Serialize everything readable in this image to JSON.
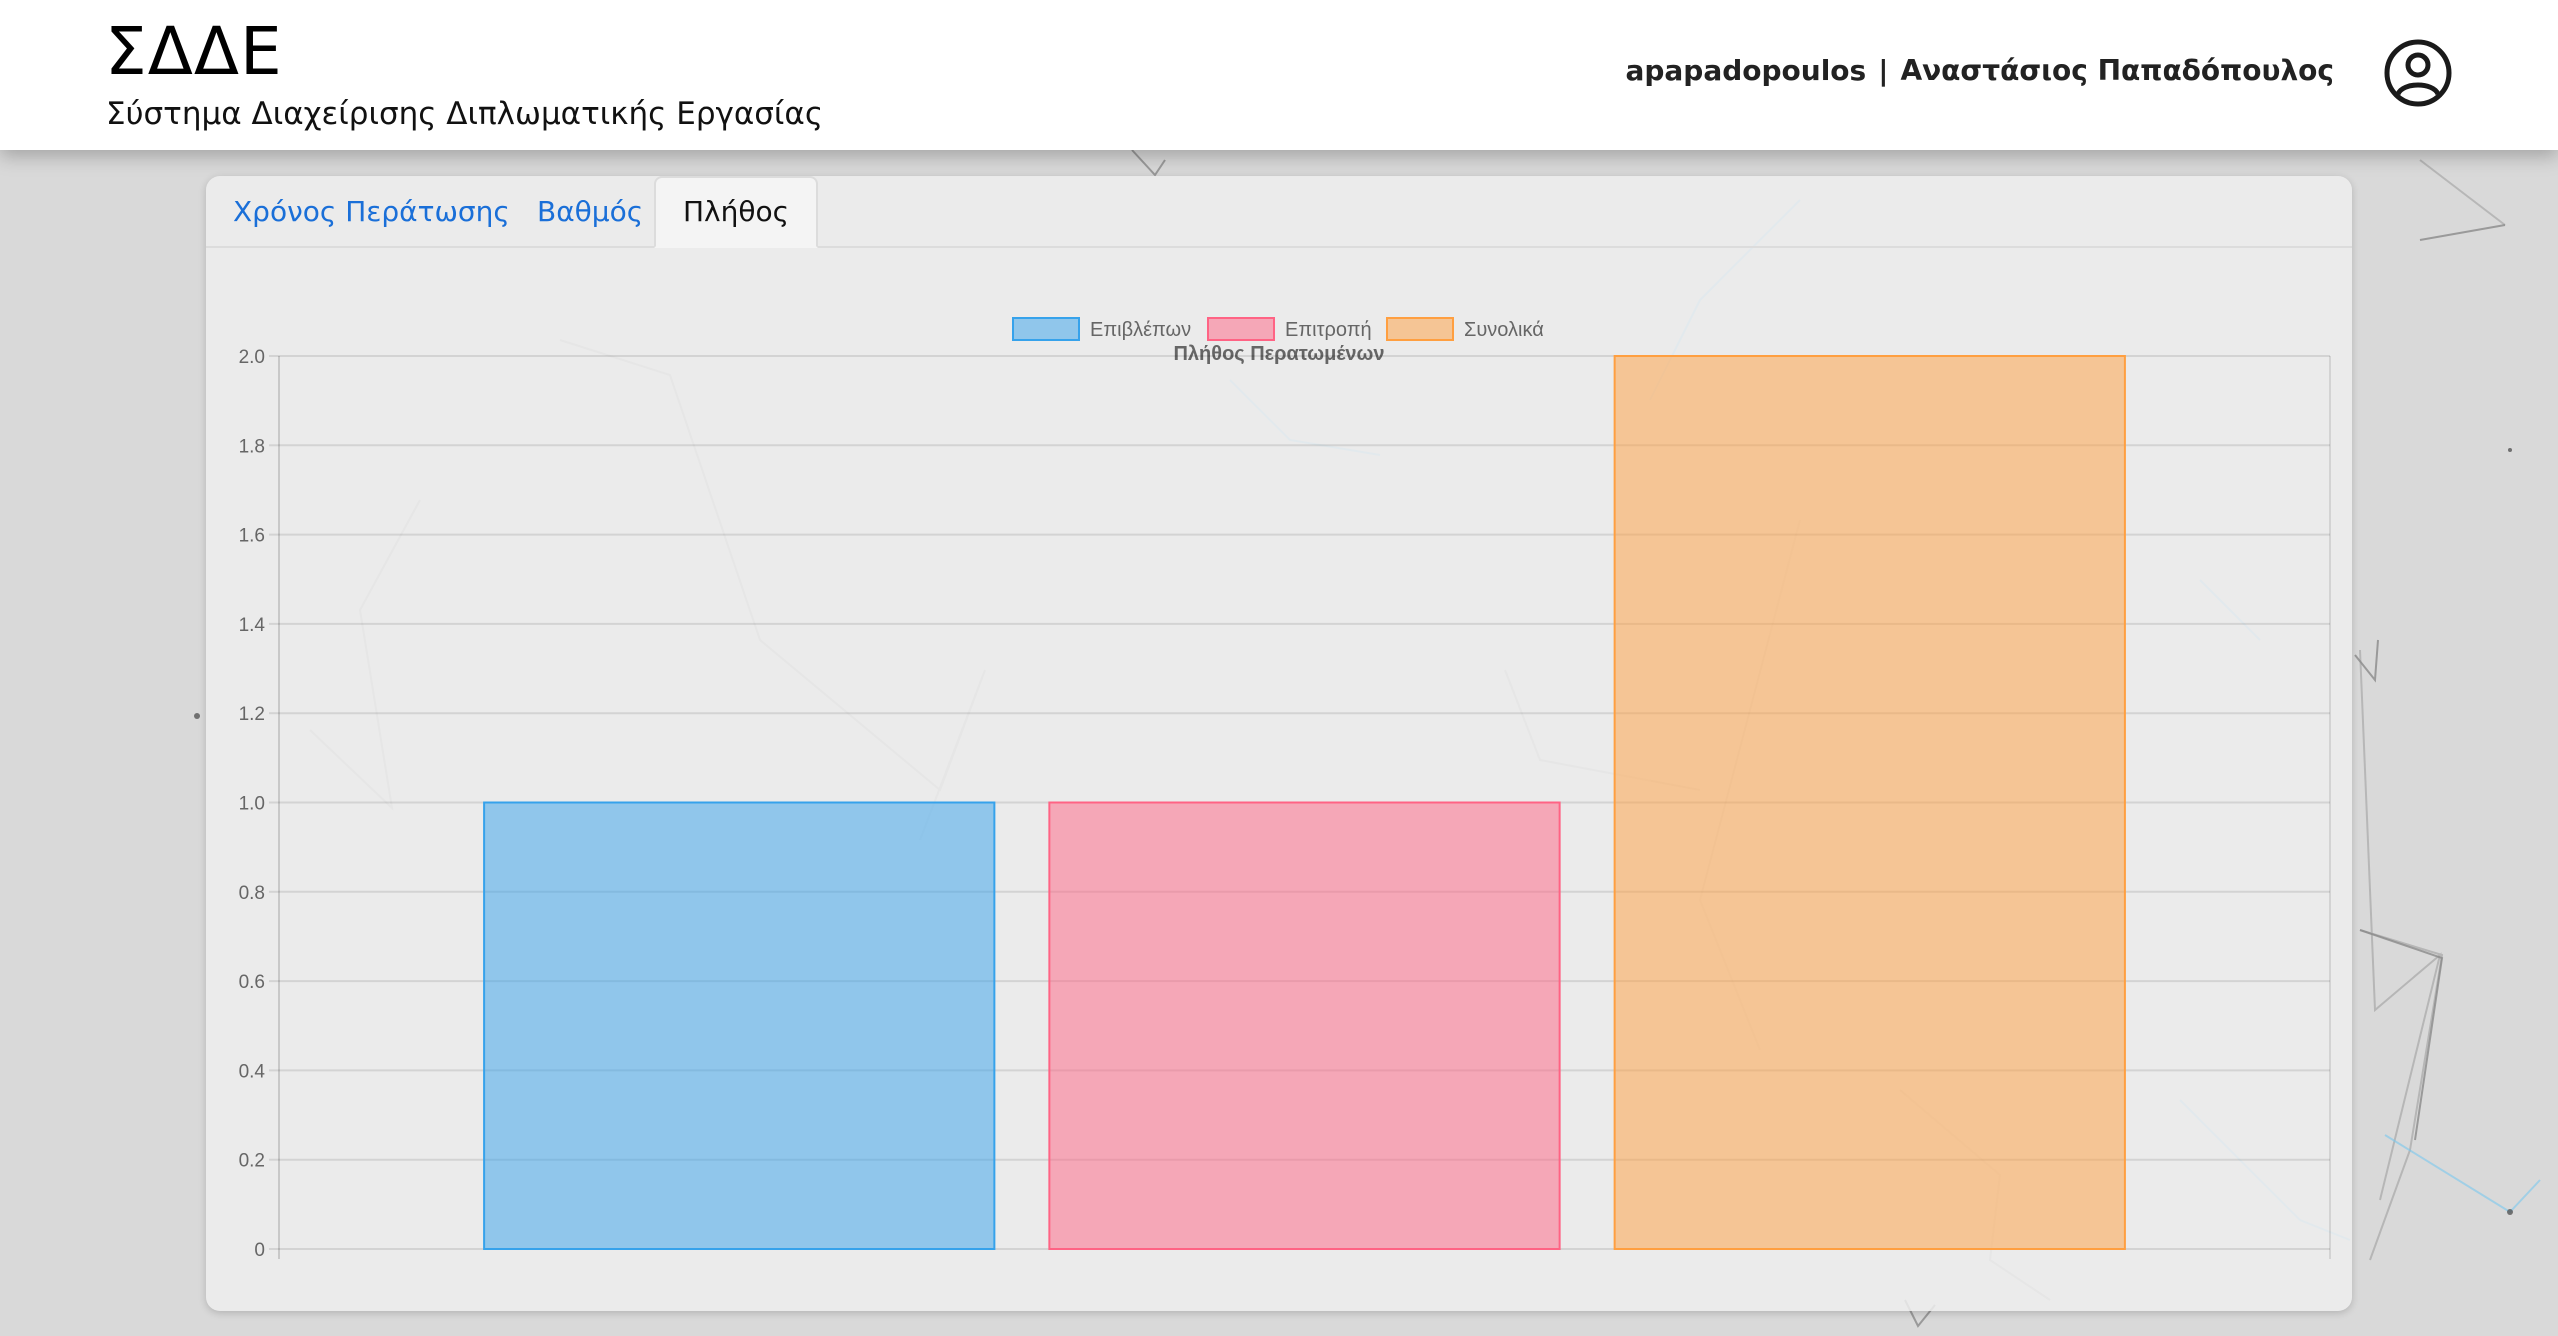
{
  "header": {
    "app_title": "ΣΔΔΕ",
    "app_subtitle": "Σύστημα Διαχείρισης Διπλωματικής Εργασίας",
    "username": "apapadopoulos",
    "separator": "|",
    "full_name": "Αναστάσιος Παπαδόπουλος",
    "avatar_icon": "user-circle-icon"
  },
  "tabs": [
    {
      "label": "Χρόνος Περάτωσης",
      "active": false
    },
    {
      "label": "Βαθμός",
      "active": false
    },
    {
      "label": "Πλήθος",
      "active": true
    }
  ],
  "colors": {
    "tab_link": "#1a6fd8",
    "series_1": "#36a2eb",
    "series_2": "#ff6384",
    "series_3": "#ff9f40"
  },
  "chart_data": {
    "type": "bar",
    "title": "Πλήθος Περατωμένων",
    "legend_position": "top",
    "grid": true,
    "ylim": [
      0,
      2
    ],
    "yticks": [
      "0",
      "0.2",
      "0.4",
      "0.6",
      "0.8",
      "1.0",
      "1.2",
      "1.4",
      "1.6",
      "1.8",
      "2.0"
    ],
    "series": [
      {
        "name": "Επιβλέπων",
        "values": [
          1
        ],
        "color": "#36a2eb"
      },
      {
        "name": "Επιτροπή",
        "values": [
          1
        ],
        "color": "#ff6384"
      },
      {
        "name": "Συνολικά",
        "values": [
          2
        ],
        "color": "#ff9f40"
      }
    ]
  }
}
